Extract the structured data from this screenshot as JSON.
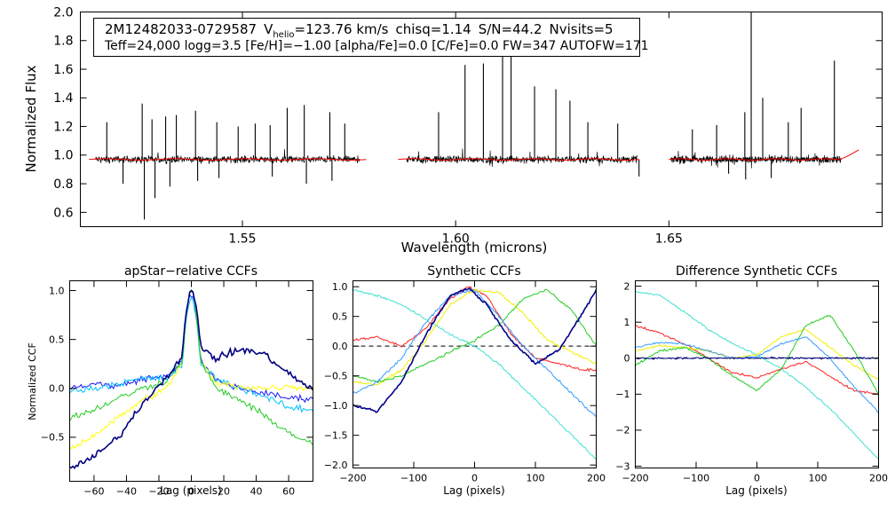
{
  "chart_data": [
    {
      "type": "line",
      "id": "spectrum",
      "title": "",
      "xlabel": "Wavelength (microns)",
      "ylabel": "Normalized Flux",
      "xlim": [
        1.512,
        1.7
      ],
      "ylim": [
        0.5,
        2.0
      ],
      "x_ticks": [
        1.55,
        1.6,
        1.65
      ],
      "x_tick_labels": [
        "1.55",
        "1.60",
        "1.65"
      ],
      "y_ticks": [
        0.6,
        0.8,
        1.0,
        1.2,
        1.4,
        1.6,
        1.8,
        2.0
      ],
      "y_tick_labels": [
        "0.6",
        "0.8",
        "1.0",
        "1.2",
        "1.4",
        "1.6",
        "1.8",
        "2.0"
      ],
      "info_box": {
        "star_id": "2M12482033-0729587",
        "vhelio_label": "V",
        "vhelio_sub": "helio",
        "vhelio_value": "=123.76 km/s",
        "chisq": "chisq=1.14",
        "snr": "S/N=44.2",
        "nvisits": "Nvisits=5",
        "line2": "Teff=24,000 logg=3.5 [Fe/H]=−1.00 [alpha/Fe]=0.0 [C/Fe]=0.0 FW=347 AUTOFW=171"
      },
      "chips": [
        [
          1.5155,
          1.5775
        ],
        [
          1.5885,
          1.6425
        ],
        [
          1.6505,
          1.6905
        ]
      ],
      "model_extent": [
        [
          1.514,
          1.579
        ],
        [
          1.5865,
          1.643
        ],
        [
          1.65,
          1.6945
        ]
      ],
      "continuum_level": 0.97,
      "emission_lines": [
        {
          "x": 1.5182,
          "y": 1.23
        },
        {
          "x": 1.5265,
          "y": 1.36
        },
        {
          "x": 1.5288,
          "y": 1.25
        },
        {
          "x": 1.532,
          "y": 1.27
        },
        {
          "x": 1.5345,
          "y": 1.28
        },
        {
          "x": 1.539,
          "y": 1.31
        },
        {
          "x": 1.544,
          "y": 1.23
        },
        {
          "x": 1.549,
          "y": 1.2
        },
        {
          "x": 1.553,
          "y": 1.22
        },
        {
          "x": 1.5565,
          "y": 1.21
        },
        {
          "x": 1.5605,
          "y": 1.33
        },
        {
          "x": 1.5645,
          "y": 1.35
        },
        {
          "x": 1.5705,
          "y": 1.3
        },
        {
          "x": 1.574,
          "y": 1.22
        },
        {
          "x": 1.596,
          "y": 1.3
        },
        {
          "x": 1.6022,
          "y": 1.63
        },
        {
          "x": 1.6065,
          "y": 1.64
        },
        {
          "x": 1.611,
          "y": 1.76
        },
        {
          "x": 1.613,
          "y": 1.8
        },
        {
          "x": 1.6185,
          "y": 1.48
        },
        {
          "x": 1.6235,
          "y": 1.46
        },
        {
          "x": 1.6268,
          "y": 1.38
        },
        {
          "x": 1.631,
          "y": 1.23
        },
        {
          "x": 1.638,
          "y": 1.22
        },
        {
          "x": 1.6555,
          "y": 1.18
        },
        {
          "x": 1.6612,
          "y": 1.21
        },
        {
          "x": 1.6678,
          "y": 1.3
        },
        {
          "x": 1.6693,
          "y": 2.02
        },
        {
          "x": 1.672,
          "y": 1.4
        },
        {
          "x": 1.678,
          "y": 1.23
        },
        {
          "x": 1.681,
          "y": 1.33
        },
        {
          "x": 1.6888,
          "y": 1.66
        }
      ],
      "absorption_lines": [
        {
          "x": 1.522,
          "y": 0.8
        },
        {
          "x": 1.527,
          "y": 0.55
        },
        {
          "x": 1.5295,
          "y": 0.7
        },
        {
          "x": 1.533,
          "y": 0.78
        },
        {
          "x": 1.5395,
          "y": 0.82
        },
        {
          "x": 1.5445,
          "y": 0.84
        },
        {
          "x": 1.557,
          "y": 0.85
        },
        {
          "x": 1.565,
          "y": 0.8
        },
        {
          "x": 1.571,
          "y": 0.82
        },
        {
          "x": 1.643,
          "y": 0.85
        },
        {
          "x": 1.668,
          "y": 0.83
        },
        {
          "x": 1.674,
          "y": 0.84
        },
        {
          "x": 1.664,
          "y": 0.87
        }
      ],
      "series": [
        {
          "name": "observed",
          "color": "#000000"
        },
        {
          "name": "model",
          "color": "#ff0000"
        }
      ]
    },
    {
      "type": "line",
      "id": "apstar_ccf",
      "title": "apStar−relative CCFs",
      "xlabel": "Lag (pixels)",
      "ylabel": "Normalized CCF",
      "xlim": [
        -75,
        75
      ],
      "ylim": [
        -0.95,
        1.1
      ],
      "x_ticks": [
        -60,
        -40,
        -20,
        0,
        20,
        40,
        60
      ],
      "x_tick_labels": [
        "−60",
        "−40",
        "−20",
        "0",
        "20",
        "40",
        "60"
      ],
      "y_ticks": [
        -0.5,
        0.0,
        0.5,
        1.0
      ],
      "y_tick_labels": [
        "−0.5",
        "0.0",
        "0.5",
        "1.0"
      ],
      "series": [
        {
          "name": "ccf-1",
          "color": "#1a1aff",
          "values_x": [
            -75,
            -60,
            -45,
            -30,
            -15,
            -5,
            0,
            5,
            15,
            30,
            45,
            60,
            75
          ],
          "values_y": [
            0.0,
            0.05,
            0.02,
            0.1,
            0.12,
            0.3,
            0.95,
            0.3,
            0.08,
            0.0,
            -0.05,
            -0.1,
            -0.1
          ]
        },
        {
          "name": "ccf-2",
          "color": "#00bfff",
          "values_x": [
            -75,
            -60,
            -45,
            -30,
            -15,
            -5,
            0,
            5,
            15,
            30,
            45,
            60,
            75
          ],
          "values_y": [
            -0.03,
            0.0,
            0.05,
            0.1,
            0.1,
            0.25,
            0.9,
            0.28,
            0.1,
            0.0,
            -0.08,
            -0.2,
            -0.22
          ]
        },
        {
          "name": "ccf-3",
          "color": "#ffff00",
          "values_x": [
            -75,
            -60,
            -45,
            -30,
            -15,
            -5,
            0,
            5,
            15,
            30,
            45,
            60,
            75
          ],
          "values_y": [
            -0.62,
            -0.48,
            -0.3,
            -0.12,
            0.0,
            0.28,
            1.0,
            0.3,
            0.05,
            0.02,
            0.0,
            0.02,
            0.0
          ]
        },
        {
          "name": "ccf-4",
          "color": "#22cc22",
          "values_x": [
            -75,
            -60,
            -45,
            -30,
            -15,
            -5,
            0,
            5,
            15,
            30,
            45,
            60,
            75
          ],
          "values_y": [
            -0.3,
            -0.22,
            -0.1,
            0.0,
            0.08,
            0.3,
            0.98,
            0.3,
            0.0,
            -0.12,
            -0.28,
            -0.45,
            -0.58
          ]
        },
        {
          "name": "ccf-5",
          "color": "#000080",
          "values_x": [
            -75,
            -60,
            -45,
            -30,
            -15,
            -5,
            0,
            5,
            15,
            30,
            45,
            60,
            75
          ],
          "values_y": [
            -0.82,
            -0.7,
            -0.5,
            -0.15,
            0.12,
            0.35,
            0.98,
            0.45,
            0.3,
            0.4,
            0.35,
            0.15,
            -0.02
          ]
        }
      ]
    },
    {
      "type": "line",
      "id": "synthetic_ccf",
      "title": "Synthetic CCFs",
      "xlabel": "Lag (pixels)",
      "ylabel": "",
      "xlim": [
        -200,
        200
      ],
      "ylim": [
        -2.05,
        1.1
      ],
      "x_ticks": [
        -200,
        -100,
        0,
        100,
        200
      ],
      "x_tick_labels": [
        "−200",
        "−100",
        "0",
        "100",
        "200"
      ],
      "y_ticks": [
        -2.0,
        -1.5,
        -1.0,
        -0.5,
        0.0,
        0.5,
        1.0
      ],
      "y_tick_labels": [
        "−2.0",
        "−1.5",
        "−1.0",
        "−0.5",
        "0.0",
        "0.5",
        "1.0"
      ],
      "zero_line": 0.0,
      "series": [
        {
          "name": "s-cyan",
          "color": "#40e0d0",
          "values_x": [
            -200,
            -160,
            -120,
            -80,
            -40,
            0,
            40,
            80,
            120,
            160,
            200
          ],
          "values_y": [
            0.95,
            0.85,
            0.7,
            0.45,
            0.2,
            0.0,
            -0.3,
            -0.7,
            -1.1,
            -1.5,
            -1.9
          ]
        },
        {
          "name": "s-red",
          "color": "#ff2020",
          "values_x": [
            -200,
            -160,
            -120,
            -80,
            -40,
            -10,
            20,
            60,
            100,
            140,
            180,
            200
          ],
          "values_y": [
            0.1,
            0.15,
            0.0,
            0.3,
            0.8,
            1.0,
            0.85,
            0.2,
            -0.2,
            -0.3,
            -0.4,
            -0.4
          ]
        },
        {
          "name": "s-yellow",
          "color": "#f0f000",
          "values_x": [
            -200,
            -160,
            -120,
            -80,
            -40,
            0,
            40,
            80,
            120,
            160,
            200
          ],
          "values_y": [
            -0.6,
            -0.65,
            -0.4,
            0.1,
            0.7,
            0.95,
            0.9,
            0.55,
            0.1,
            -0.1,
            -0.3
          ]
        },
        {
          "name": "s-green",
          "color": "#22cc22",
          "values_x": [
            -200,
            -160,
            -120,
            -80,
            -40,
            0,
            40,
            80,
            120,
            160,
            200
          ],
          "values_y": [
            -0.5,
            -0.6,
            -0.5,
            -0.3,
            -0.1,
            0.1,
            0.35,
            0.8,
            0.95,
            0.6,
            0.0
          ]
        },
        {
          "name": "s-blue",
          "color": "#3399ff",
          "values_x": [
            -200,
            -160,
            -120,
            -80,
            -40,
            0,
            40,
            80,
            120,
            160,
            200
          ],
          "values_y": [
            -0.8,
            -0.6,
            -0.2,
            0.4,
            0.85,
            0.95,
            0.5,
            0.0,
            -0.4,
            -0.8,
            -1.2
          ]
        },
        {
          "name": "s-navy",
          "color": "#00008b",
          "values_x": [
            -200,
            -160,
            -120,
            -80,
            -40,
            -10,
            20,
            60,
            100,
            140,
            180,
            200
          ],
          "values_y": [
            -1.0,
            -1.1,
            -0.6,
            0.2,
            0.85,
            0.98,
            0.7,
            0.1,
            -0.3,
            -0.05,
            0.6,
            0.95
          ]
        }
      ]
    },
    {
      "type": "line",
      "id": "difference_ccf",
      "title": "Difference Synthetic CCFs",
      "xlabel": "Lag (pixels)",
      "ylabel": "",
      "xlim": [
        -200,
        200
      ],
      "ylim": [
        -3.05,
        2.15
      ],
      "x_ticks": [
        -200,
        -100,
        0,
        100,
        200
      ],
      "x_tick_labels": [
        "−200",
        "−100",
        "0",
        "100",
        "200"
      ],
      "y_ticks": [
        -3,
        -2,
        -1,
        0,
        1,
        2
      ],
      "y_tick_labels": [
        "−3",
        "−2",
        "−1",
        "0",
        "1",
        "2"
      ],
      "zero_line": 0.0,
      "series": [
        {
          "name": "d-cyan",
          "color": "#40e0d0",
          "values_x": [
            -200,
            -160,
            -120,
            -80,
            -40,
            0,
            40,
            80,
            120,
            160,
            200
          ],
          "values_y": [
            1.85,
            1.75,
            1.3,
            0.8,
            0.4,
            0.1,
            -0.3,
            -0.8,
            -1.4,
            -2.1,
            -2.8
          ]
        },
        {
          "name": "d-red",
          "color": "#ff2020",
          "values_x": [
            -200,
            -160,
            -120,
            -80,
            -40,
            0,
            40,
            80,
            120,
            160,
            200
          ],
          "values_y": [
            0.9,
            0.7,
            0.4,
            0.0,
            -0.4,
            -0.55,
            -0.3,
            -0.1,
            -0.5,
            -0.9,
            -1.0
          ]
        },
        {
          "name": "d-yellow",
          "color": "#f0f000",
          "values_x": [
            -200,
            -160,
            -120,
            -80,
            -40,
            0,
            40,
            80,
            120,
            160,
            200
          ],
          "values_y": [
            0.2,
            0.35,
            0.3,
            0.2,
            0.0,
            0.1,
            0.6,
            0.8,
            0.3,
            -0.2,
            -0.6
          ]
        },
        {
          "name": "d-green",
          "color": "#22cc22",
          "values_x": [
            -200,
            -160,
            -120,
            -80,
            -40,
            0,
            40,
            80,
            120,
            160,
            200
          ],
          "values_y": [
            -0.2,
            0.2,
            0.3,
            0.0,
            -0.5,
            -0.9,
            -0.3,
            0.9,
            1.2,
            0.2,
            -1.0
          ]
        },
        {
          "name": "d-blue",
          "color": "#3399ff",
          "values_x": [
            -200,
            -160,
            -120,
            -80,
            -40,
            0,
            40,
            80,
            120,
            160,
            200
          ],
          "values_y": [
            0.3,
            0.45,
            0.4,
            0.2,
            0.0,
            0.05,
            0.4,
            0.6,
            0.0,
            -0.8,
            -1.5
          ]
        },
        {
          "name": "d-navy",
          "color": "#00008b",
          "values_x": [
            -200,
            200
          ],
          "values_y": [
            0.0,
            0.0
          ]
        }
      ]
    }
  ]
}
